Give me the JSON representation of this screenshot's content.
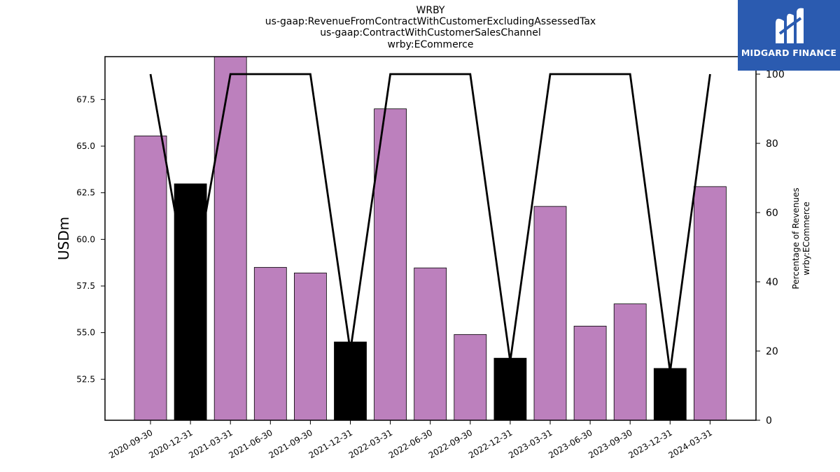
{
  "chart_data": {
    "type": "bar",
    "title_lines": [
      "WRBY",
      "us-gaap:RevenueFromContractWithCustomerExcludingAssessedTax",
      "us-gaap:ContractWithCustomerSalesChannel",
      "wrby:ECommerce"
    ],
    "ylabel": "USDm",
    "y2label_lines": [
      "Percentage of Revenues",
      "wrby:ECommerce"
    ],
    "categories": [
      "2020-09-30",
      "2020-12-31",
      "2021-03-31",
      "2021-06-30",
      "2021-09-30",
      "2021-12-31",
      "2022-03-31",
      "2022-06-30",
      "2022-09-30",
      "2022-12-31",
      "2023-03-31",
      "2023-06-30",
      "2023-09-30",
      "2023-12-31",
      "2024-03-31"
    ],
    "values": [
      65.55,
      62.98,
      69.8,
      58.5,
      58.2,
      54.5,
      67.0,
      58.47,
      54.9,
      53.63,
      61.77,
      55.35,
      56.54,
      53.08,
      62.83
    ],
    "bar_colors": [
      "#bc80bd",
      "#000000",
      "#bc80bd",
      "#bc80bd",
      "#bc80bd",
      "#000000",
      "#bc80bd",
      "#bc80bd",
      "#bc80bd",
      "#000000",
      "#bc80bd",
      "#bc80bd",
      "#bc80bd",
      "#000000",
      "#bc80bd"
    ],
    "ylim": [
      50.3,
      69.8
    ],
    "yticks": [
      "52.5",
      "55.0",
      "57.5",
      "60.0",
      "62.5",
      "65.0",
      "67.5"
    ],
    "line": {
      "name": "Percentage of Revenues",
      "values": [
        100,
        35,
        100,
        100,
        100,
        20,
        100,
        100,
        100,
        17,
        100,
        100,
        100,
        14,
        100
      ],
      "color": "#000000"
    },
    "y2lim": [
      0,
      100
    ],
    "y2ticks": [
      "0",
      "20",
      "40",
      "60",
      "80",
      "100"
    ],
    "grid": false,
    "legend": "none"
  },
  "logo": {
    "text": "MIDGARD FINANCE",
    "background": "#2b5bb0"
  }
}
